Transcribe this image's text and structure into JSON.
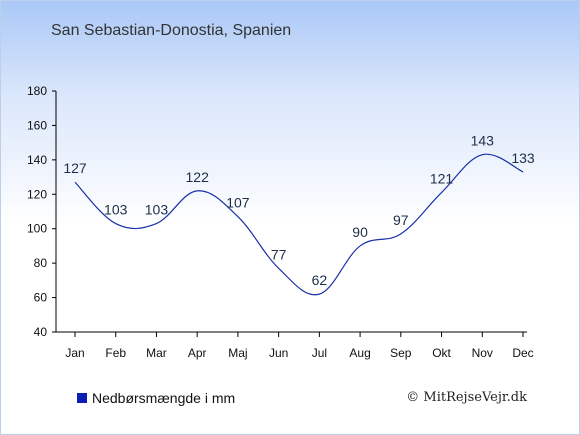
{
  "title": "San Sebastian-Donostia, Spanien",
  "legend": {
    "label": "Nedbørsmængde i mm",
    "color": "#0a1eb4"
  },
  "credit": "© MitRejseVejr.dk",
  "chart_data": {
    "type": "line",
    "title": "San Sebastian-Donostia, Spanien",
    "categories": [
      "Jan",
      "Feb",
      "Mar",
      "Apr",
      "Maj",
      "Jun",
      "Jul",
      "Aug",
      "Sep",
      "Okt",
      "Nov",
      "Dec"
    ],
    "series": [
      {
        "name": "Nedbørsmængde i mm",
        "values": [
          127,
          103,
          103,
          122,
          107,
          77,
          62,
          90,
          97,
          121,
          143,
          133
        ],
        "color": "#1a2fa8"
      }
    ],
    "data_labels": [
      "127",
      "103",
      "103",
      "122",
      "107",
      "77",
      "62",
      "90",
      "97",
      "121",
      "143",
      "133"
    ],
    "yticks": [
      "40",
      "60",
      "80",
      "100",
      "120",
      "140",
      "160",
      "180"
    ],
    "ylim": [
      40,
      180
    ],
    "grid": false,
    "legend_position": "bottom-left"
  }
}
